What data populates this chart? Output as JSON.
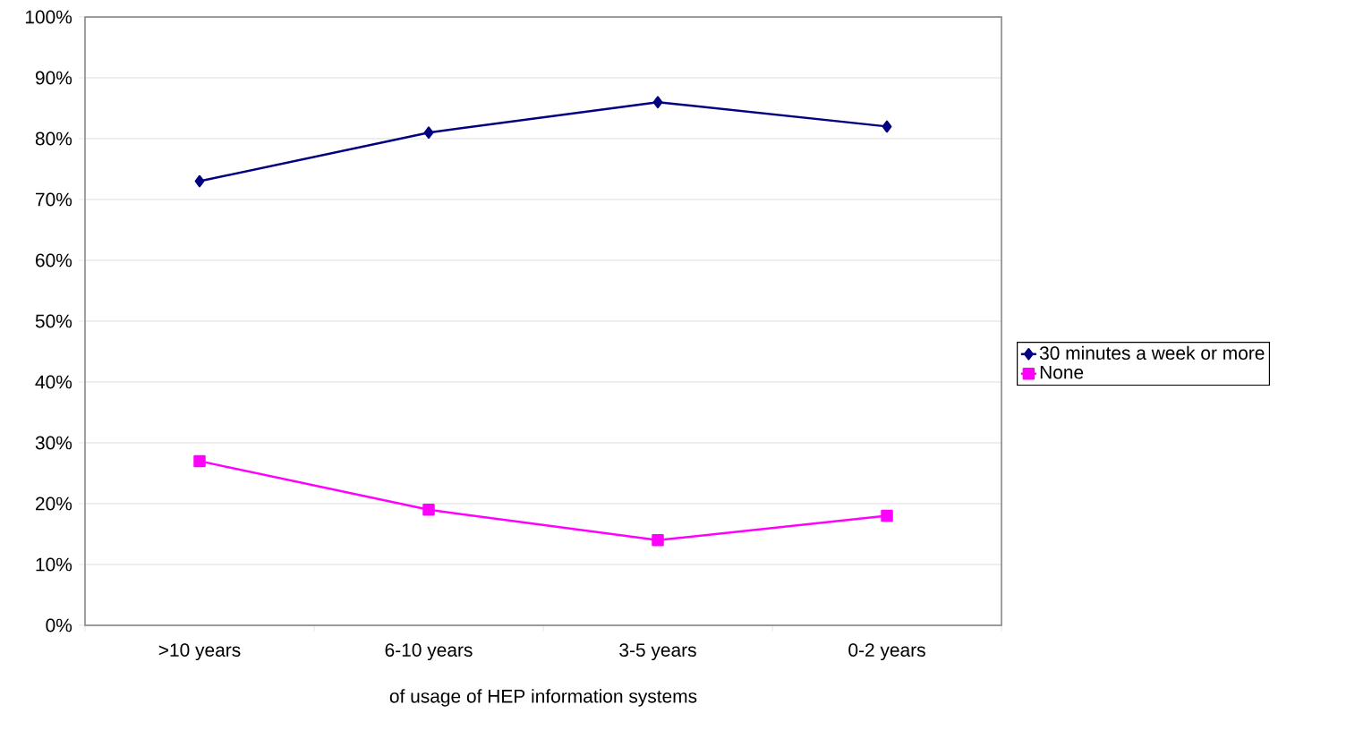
{
  "chart_data": {
    "type": "line",
    "xlabel": "of usage of HEP information systems",
    "categories": [
      ">10 years",
      "6-10 years",
      "3-5 years",
      "0-2 years"
    ],
    "series": [
      {
        "name": "30 minutes a week or more",
        "color": "#000080",
        "marker": "diamond",
        "values": [
          73,
          81,
          86,
          82
        ]
      },
      {
        "name": "None",
        "color": "#ff00ff",
        "marker": "square",
        "values": [
          27,
          19,
          14,
          18
        ]
      }
    ],
    "ylim": [
      0,
      100
    ],
    "yticks": [
      {
        "value": 0,
        "label": "0%"
      },
      {
        "value": 10,
        "label": "10%"
      },
      {
        "value": 20,
        "label": "20%"
      },
      {
        "value": 30,
        "label": "30%"
      },
      {
        "value": 40,
        "label": "40%"
      },
      {
        "value": 50,
        "label": "50%"
      },
      {
        "value": 60,
        "label": "60%"
      },
      {
        "value": 70,
        "label": "70%"
      },
      {
        "value": 80,
        "label": "80%"
      },
      {
        "value": 90,
        "label": "90%"
      },
      {
        "value": 100,
        "label": "100%"
      }
    ],
    "grid": "y",
    "legend": "right",
    "line_style": "solid"
  }
}
